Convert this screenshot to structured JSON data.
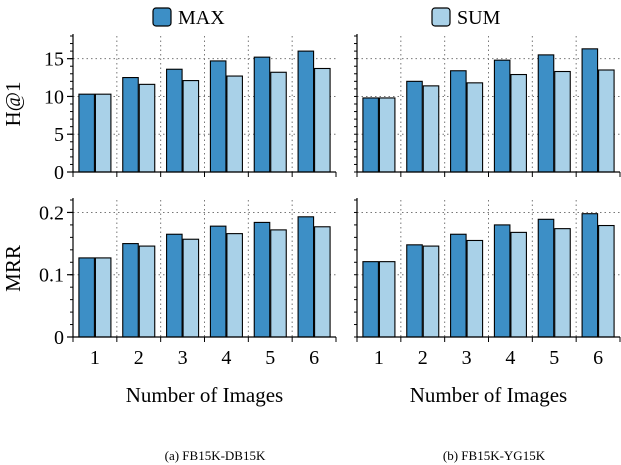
{
  "legend": {
    "position": "top-center",
    "items": [
      {
        "label": "MAX",
        "color": "#3d8fc6"
      },
      {
        "label": "SUM",
        "color": "#a9d1e8"
      }
    ]
  },
  "captions": [
    "(a)  FB15K-DB15K",
    "(b)  FB15K-YG15K"
  ],
  "chart_data": [
    {
      "type": "bar",
      "panel": "(a) top",
      "categories": [
        "1",
        "2",
        "3",
        "4",
        "5",
        "6"
      ],
      "series": [
        {
          "name": "MAX",
          "values": [
            10.3,
            12.5,
            13.6,
            14.7,
            15.2,
            16.0
          ]
        },
        {
          "name": "SUM",
          "values": [
            10.3,
            11.6,
            12.1,
            12.7,
            13.2,
            13.7
          ]
        }
      ],
      "ylabel": "H@1",
      "ylim": [
        0,
        18
      ],
      "yticks": [
        0,
        5,
        10,
        15
      ],
      "ytick_labels": [
        "0",
        "5",
        "10",
        "15"
      ],
      "xlabel": "",
      "grid": "dotted"
    },
    {
      "type": "bar",
      "panel": "(b) top",
      "categories": [
        "1",
        "2",
        "3",
        "4",
        "5",
        "6"
      ],
      "series": [
        {
          "name": "MAX",
          "values": [
            9.8,
            12.0,
            13.4,
            14.8,
            15.5,
            16.3
          ]
        },
        {
          "name": "SUM",
          "values": [
            9.8,
            11.4,
            11.8,
            12.9,
            13.3,
            13.5
          ]
        }
      ],
      "ylim": [
        0,
        18
      ],
      "xlabel": "",
      "grid": "dotted"
    },
    {
      "type": "bar",
      "panel": "(a) bottom",
      "categories": [
        "1",
        "2",
        "3",
        "4",
        "5",
        "6"
      ],
      "series": [
        {
          "name": "MAX",
          "values": [
            0.127,
            0.15,
            0.165,
            0.178,
            0.184,
            0.193
          ]
        },
        {
          "name": "SUM",
          "values": [
            0.127,
            0.146,
            0.157,
            0.166,
            0.172,
            0.177
          ]
        }
      ],
      "ylabel": "MRR",
      "ylim": [
        0,
        0.22
      ],
      "yticks": [
        0,
        0.1,
        0.2
      ],
      "ytick_labels": [
        "0",
        "0.1",
        "0.2"
      ],
      "xlabel": "Number of Images",
      "grid": "dotted"
    },
    {
      "type": "bar",
      "panel": "(b) bottom",
      "categories": [
        "1",
        "2",
        "3",
        "4",
        "5",
        "6"
      ],
      "series": [
        {
          "name": "MAX",
          "values": [
            0.121,
            0.148,
            0.165,
            0.18,
            0.189,
            0.198
          ]
        },
        {
          "name": "SUM",
          "values": [
            0.121,
            0.146,
            0.155,
            0.168,
            0.174,
            0.179
          ]
        }
      ],
      "ylim": [
        0,
        0.22
      ],
      "xlabel": "Number of Images",
      "grid": "dotted"
    }
  ]
}
